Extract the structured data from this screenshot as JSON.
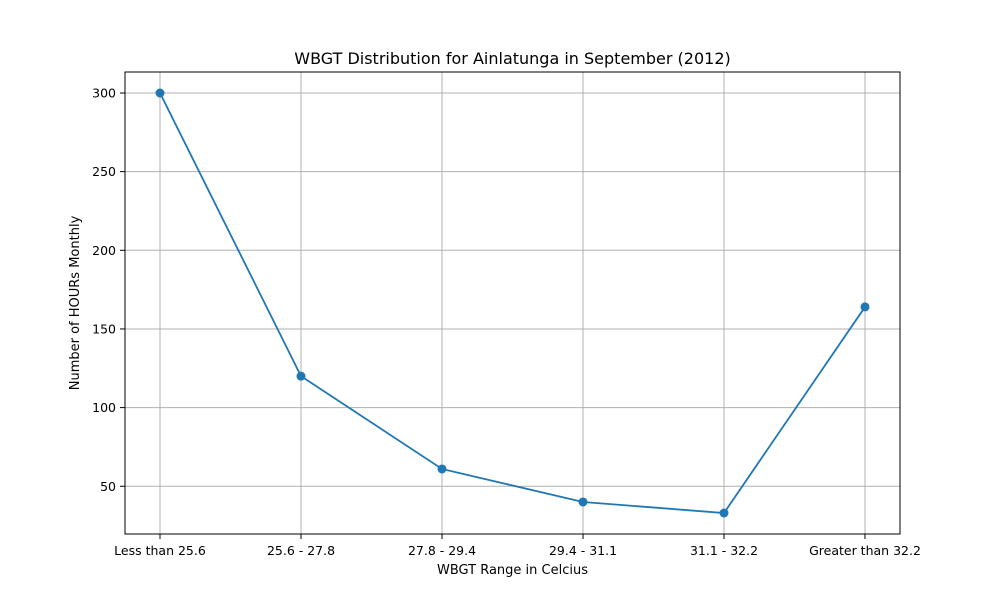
{
  "chart_data": {
    "type": "line",
    "title": "WBGT Distribution for Ainlatunga in September (2012)",
    "xlabel": "WBGT Range in Celcius",
    "ylabel": "Number of HOURs Monthly",
    "categories": [
      "Less than 25.6",
      "25.6 - 27.8",
      "27.8 - 29.4",
      "29.4 - 31.1",
      "31.1 - 32.2",
      "Greater than 32.2"
    ],
    "series": [
      {
        "values": [
          300,
          120,
          61,
          40,
          33,
          164
        ],
        "color": "#1f77b4"
      }
    ],
    "ylim": [
      19.65,
      313.35
    ],
    "yticks": [
      50,
      100,
      150,
      200,
      250,
      300
    ],
    "grid": true,
    "legend": "none"
  }
}
